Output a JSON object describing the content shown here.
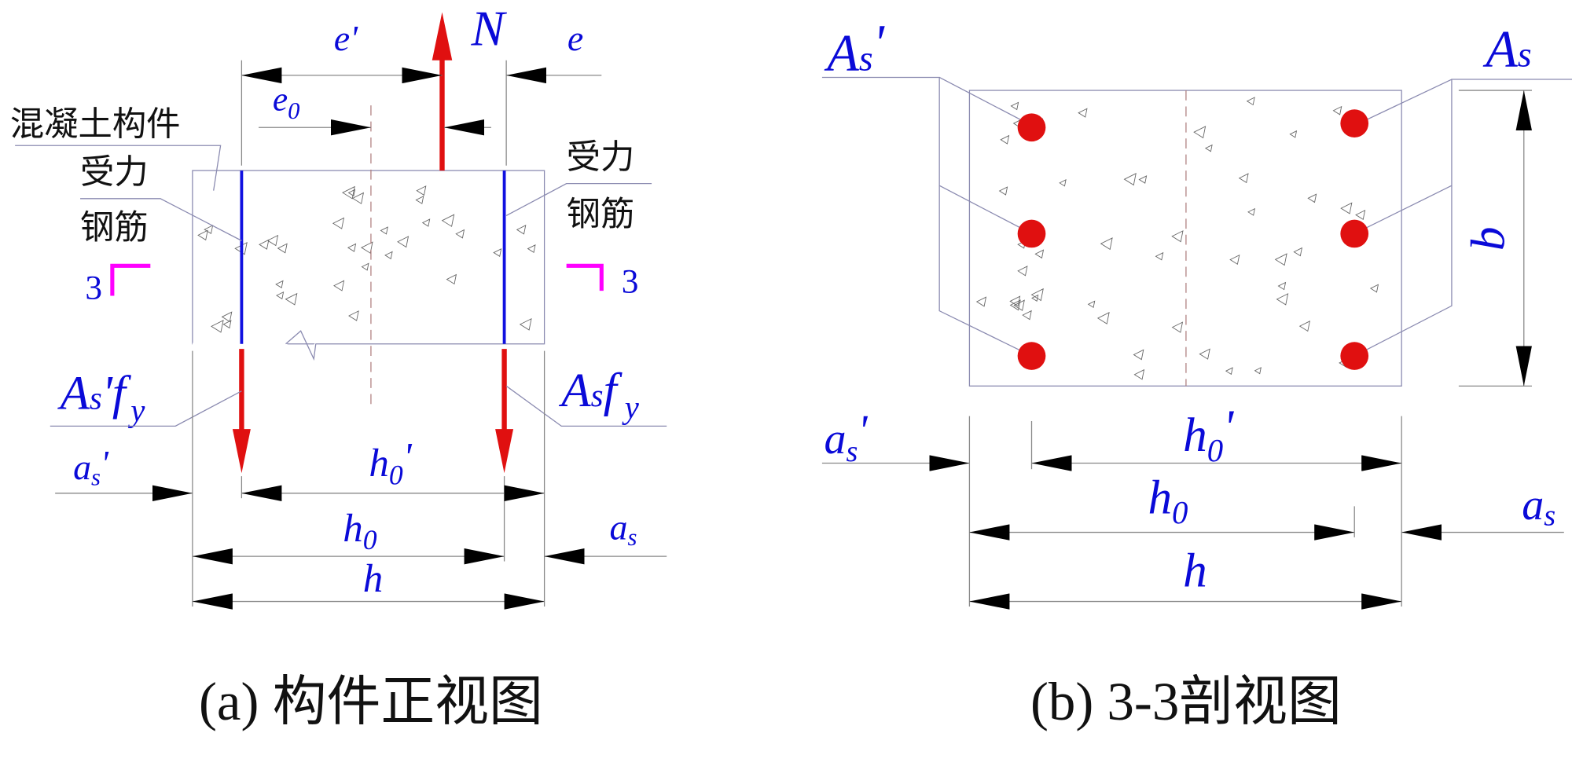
{
  "colors": {
    "label": "#0a0ad8",
    "force": "#e01010",
    "rebar": "#1010e0",
    "section_mark": "#ff00ff",
    "concrete_outline": "#8a8ab0"
  },
  "front_view": {
    "caption": "(a) 构件正视图",
    "concrete_label": "混凝土构件",
    "rebar_label_left": [
      "受力",
      "钢筋"
    ],
    "rebar_label_right": [
      "受力",
      "钢筋"
    ],
    "force_N": "N",
    "e_prime": "e'",
    "e": "e",
    "e0": {
      "base": "e",
      "sub": "0"
    },
    "force_left": {
      "base": "A",
      "sub": "s",
      "rest": "'f",
      "sub2": "y"
    },
    "force_right": {
      "base": "A",
      "sub": "s",
      "rest": "f",
      "sub2": "y"
    },
    "as_prime": {
      "base": "a",
      "sub": "s",
      "prime": "'"
    },
    "as": {
      "base": "a",
      "sub": "s"
    },
    "h0_prime": {
      "base": "h",
      "sub": "0",
      "prime": "'"
    },
    "h0": {
      "base": "h",
      "sub": "0"
    },
    "h": "h",
    "section_mark": "3"
  },
  "section_view": {
    "caption": "(b) 3-3剖视图",
    "As_prime": {
      "base": "A",
      "sub": "s",
      "prime": "'"
    },
    "As": {
      "base": "A",
      "sub": "s"
    },
    "b": "b",
    "as_prime": {
      "base": "a",
      "sub": "s",
      "prime": "'"
    },
    "as": {
      "base": "a",
      "sub": "s"
    },
    "h0_prime": {
      "base": "h",
      "sub": "0",
      "prime": "'"
    },
    "h0": {
      "base": "h",
      "sub": "0"
    },
    "h": "h"
  }
}
